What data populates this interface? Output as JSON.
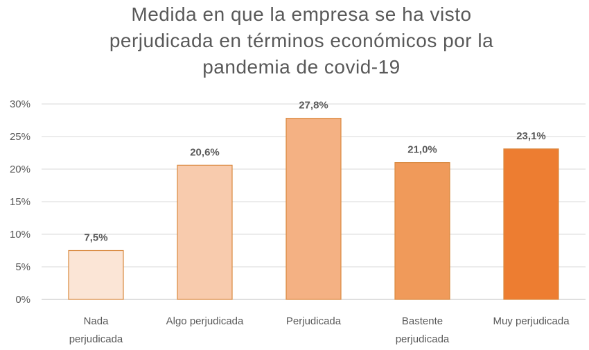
{
  "chart_data": {
    "type": "bar",
    "title_lines": [
      "Medida en que la empresa se ha visto",
      "perjudicada en términos económicos por la",
      "pandemia de covid-19"
    ],
    "categories": [
      [
        "Nada",
        "perjudicada"
      ],
      [
        "Algo perjudicada"
      ],
      [
        "Perjudicada"
      ],
      [
        "Bastente",
        "perjudicada"
      ],
      [
        "Muy perjudicada"
      ]
    ],
    "values": [
      7.5,
      20.6,
      27.8,
      21.0,
      23.1
    ],
    "value_labels": [
      "7,5%",
      "20,6%",
      "27,8%",
      "21,0%",
      "23,1%"
    ],
    "bar_colors": [
      "#FBE5D6",
      "#F8CBAD",
      "#F4B183",
      "#F09A5A",
      "#ED7D31"
    ],
    "bar_border_color": "#D9883E",
    "ylim": [
      0,
      30
    ],
    "yticks": [
      0,
      5,
      10,
      15,
      20,
      25,
      30
    ],
    "ytick_labels": [
      "0%",
      "5%",
      "10%",
      "15%",
      "20%",
      "25%",
      "30%"
    ],
    "grid": true,
    "xlabel": "",
    "ylabel": ""
  }
}
